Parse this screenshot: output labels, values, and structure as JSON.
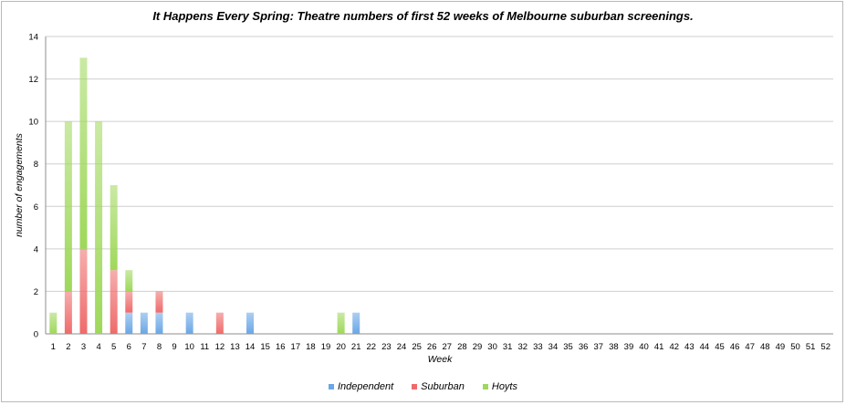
{
  "chart_data": {
    "type": "bar",
    "stacked": true,
    "title": "It Happens Every Spring: Theatre numbers of first 52 weeks of Melbourne suburban screenings.",
    "xlabel": "Week",
    "ylabel": "number of engagements",
    "ylim": [
      0,
      14
    ],
    "yticks": [
      0,
      2,
      4,
      6,
      8,
      10,
      12,
      14
    ],
    "grid": true,
    "legend_position": "bottom",
    "categories": [
      "1",
      "2",
      "3",
      "4",
      "5",
      "6",
      "7",
      "8",
      "9",
      "10",
      "11",
      "12",
      "13",
      "14",
      "15",
      "16",
      "17",
      "18",
      "19",
      "20",
      "21",
      "22",
      "23",
      "24",
      "25",
      "26",
      "27",
      "28",
      "29",
      "30",
      "31",
      "32",
      "33",
      "34",
      "35",
      "36",
      "37",
      "38",
      "39",
      "40",
      "41",
      "42",
      "43",
      "44",
      "45",
      "46",
      "47",
      "48",
      "49",
      "50",
      "51",
      "52"
    ],
    "series": [
      {
        "name": "Independent",
        "color": "#6aa7e6",
        "values": [
          0,
          0,
          0,
          0,
          0,
          1,
          1,
          1,
          0,
          1,
          0,
          0,
          0,
          1,
          0,
          0,
          0,
          0,
          0,
          0,
          1,
          0,
          0,
          0,
          0,
          0,
          0,
          0,
          0,
          0,
          0,
          0,
          0,
          0,
          0,
          0,
          0,
          0,
          0,
          0,
          0,
          0,
          0,
          0,
          0,
          0,
          0,
          0,
          0,
          0,
          0,
          0
        ]
      },
      {
        "name": "Suburban",
        "color": "#ef6b6b",
        "values": [
          0,
          2,
          4,
          0,
          3,
          1,
          0,
          1,
          0,
          0,
          0,
          1,
          0,
          0,
          0,
          0,
          0,
          0,
          0,
          0,
          0,
          0,
          0,
          0,
          0,
          0,
          0,
          0,
          0,
          0,
          0,
          0,
          0,
          0,
          0,
          0,
          0,
          0,
          0,
          0,
          0,
          0,
          0,
          0,
          0,
          0,
          0,
          0,
          0,
          0,
          0,
          0
        ]
      },
      {
        "name": "Hoyts",
        "color": "#9fd85a",
        "values": [
          1,
          8,
          9,
          10,
          4,
          1,
          0,
          0,
          0,
          0,
          0,
          0,
          0,
          0,
          0,
          0,
          0,
          0,
          0,
          1,
          0,
          0,
          0,
          0,
          0,
          0,
          0,
          0,
          0,
          0,
          0,
          0,
          0,
          0,
          0,
          0,
          0,
          0,
          0,
          0,
          0,
          0,
          0,
          0,
          0,
          0,
          0,
          0,
          0,
          0,
          0,
          0
        ]
      }
    ]
  }
}
